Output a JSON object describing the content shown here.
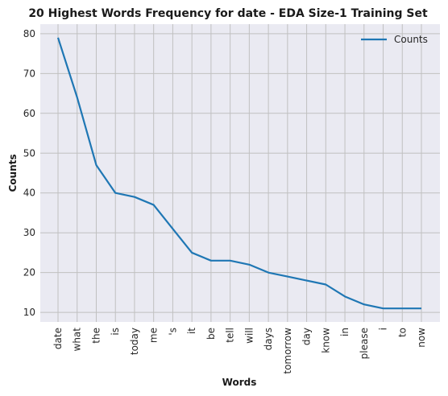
{
  "chart_data": {
    "type": "line",
    "title": "20 Highest Words Frequency for date - EDA Size-1 Training Set",
    "xlabel": "Words",
    "ylabel": "Counts",
    "categories": [
      "date",
      "what",
      "the",
      "is",
      "today",
      "me",
      "'s",
      "it",
      "be",
      "tell",
      "will",
      "days",
      "tomorrow",
      "day",
      "know",
      "in",
      "please",
      "i",
      "to",
      "now"
    ],
    "series": [
      {
        "name": "Counts",
        "values": [
          79,
          64,
          47,
          40,
          39,
          37,
          31,
          25,
          23,
          23,
          22,
          20,
          19,
          18,
          17,
          14,
          12,
          11,
          11,
          11
        ]
      }
    ],
    "yticks": [
      10,
      20,
      30,
      40,
      50,
      60,
      70,
      80
    ],
    "ylim": [
      7.6,
      82.4
    ],
    "grid": true,
    "legend": "top-right",
    "colors": {
      "line": "#1f77b4",
      "plot_background": "#eaeaf2",
      "grid": "#c0c0c0"
    }
  }
}
